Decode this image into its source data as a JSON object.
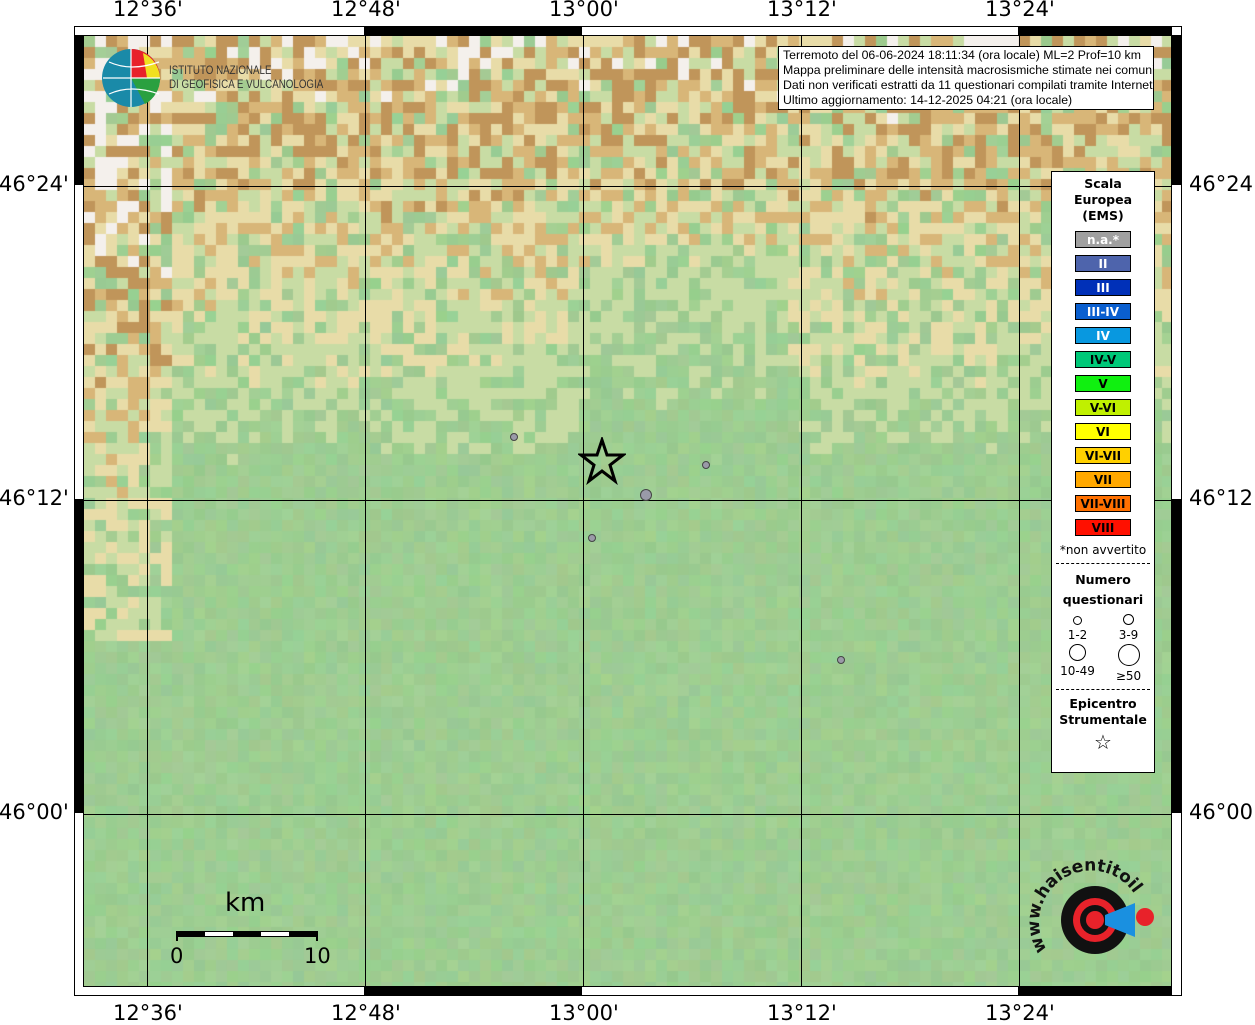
{
  "info_box": {
    "lines": [
      "Terremoto del 06-06-2024 18:11:34 (ora locale) ML=2 Prof=10 km",
      "Mappa preliminare delle intensità macrosismiche stimate nei comuni",
      "Dati non verificati estratti da 11 questionari compilati tramite Internet.",
      "Ultimo aggiornamento: 14-12-2025 04:21 (ora locale)"
    ]
  },
  "logo_ingv": {
    "lines": [
      "ISTITUTO NAZIONALE",
      "DI GEOFISICA E VULCANOLOGIA"
    ]
  },
  "logo_hsit": {
    "text": "www.haisentitoilterremoto.it"
  },
  "axes": {
    "lon_ticks": [
      "12°36'",
      "12°48'",
      "13°00'",
      "13°12'",
      "13°24'"
    ],
    "lat_ticks": [
      "46°24'",
      "46°12'",
      "46°00'"
    ]
  },
  "scale_bar": {
    "unit": "km",
    "min": "0",
    "max": "10"
  },
  "legend": {
    "title": [
      "Scala",
      "Europea",
      "(EMS)"
    ],
    "classes": [
      {
        "label": "n.a.*",
        "color": "#a0a0a0",
        "text": "#ffffff"
      },
      {
        "label": "II",
        "color": "#4e64ac",
        "text": "#ffffff"
      },
      {
        "label": "III",
        "color": "#0030b8",
        "text": "#ffffff"
      },
      {
        "label": "III-IV",
        "color": "#0a5fcf",
        "text": "#ffffff"
      },
      {
        "label": "IV",
        "color": "#0898e0",
        "text": "#ffffff"
      },
      {
        "label": "IV-V",
        "color": "#00c878",
        "text": "#000000"
      },
      {
        "label": "V",
        "color": "#10f010",
        "text": "#000000"
      },
      {
        "label": "V-VI",
        "color": "#c0f000",
        "text": "#000000"
      },
      {
        "label": "VI",
        "color": "#ffff00",
        "text": "#000000"
      },
      {
        "label": "VI-VII",
        "color": "#ffd000",
        "text": "#000000"
      },
      {
        "label": "VII",
        "color": "#ffa800",
        "text": "#000000"
      },
      {
        "label": "VII-VIII",
        "color": "#ff7000",
        "text": "#000000"
      },
      {
        "label": "VIII",
        "color": "#ff1000",
        "text": "#000000"
      }
    ],
    "note": "*non avvertito",
    "count_title": [
      "Numero",
      "questionari"
    ],
    "counts": [
      "1-2",
      "3-9",
      "10-49",
      "≥50"
    ],
    "epicenter_title": [
      "Epicentro",
      "Strumentale"
    ]
  },
  "epicenter": {
    "lon": 13.017,
    "lat": 46.225,
    "icon": "star-icon"
  },
  "observations": [
    {
      "lon": 12.937,
      "lat": 46.24,
      "class": "n.a.*",
      "count": "1-2"
    },
    {
      "lon": 13.113,
      "lat": 46.222,
      "class": "n.a.*",
      "count": "1-2"
    },
    {
      "lon": 13.058,
      "lat": 46.203,
      "class": "n.a.*",
      "count": "3-9"
    },
    {
      "lon": 13.008,
      "lat": 46.176,
      "class": "n.a.*",
      "count": "1-2"
    },
    {
      "lon": 13.237,
      "lat": 46.098,
      "class": "n.a.*",
      "count": "1-2"
    }
  ]
}
